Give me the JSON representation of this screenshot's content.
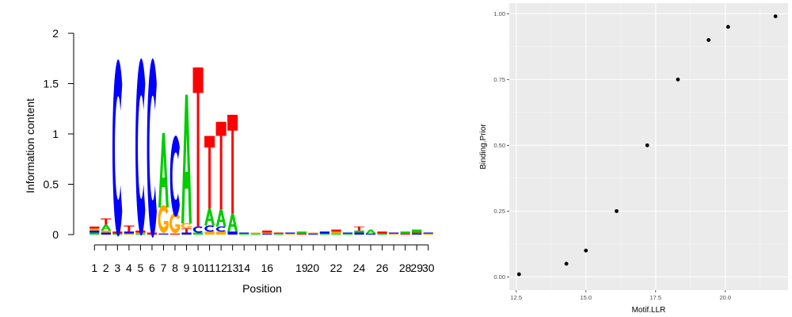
{
  "chart_data": [
    {
      "type": "sequence-logo",
      "xlabel": "Position",
      "ylabel": "Information content",
      "ylim": [
        0,
        2
      ],
      "y_ticks": [
        "0",
        "0.5",
        "1",
        "1.5",
        "2"
      ],
      "x_ticks": [
        "1",
        "2",
        "3",
        "4",
        "5",
        "6",
        "7",
        "8",
        "9",
        "10",
        "11",
        "12",
        "13",
        "14",
        "16",
        "19",
        "20",
        "22",
        "24",
        "26",
        "28",
        "29",
        "30"
      ],
      "colors": {
        "A": "#00cc00",
        "C": "#0000ff",
        "G": "#ffa500",
        "T": "#ff0000"
      },
      "columns": [
        {
          "position": 1,
          "letters": [
            [
              "A",
              0.02
            ],
            [
              "C",
              0.02
            ],
            [
              "G",
              0.02
            ],
            [
              "T",
              0.02
            ]
          ]
        },
        {
          "position": 2,
          "letters": [
            [
              "C",
              0.02
            ],
            [
              "G",
              0.02
            ],
            [
              "A",
              0.06
            ],
            [
              "T",
              0.06
            ]
          ]
        },
        {
          "position": 3,
          "letters": [
            [
              "A",
              0.01
            ],
            [
              "T",
              0.02
            ],
            [
              "C",
              1.66
            ]
          ]
        },
        {
          "position": 4,
          "letters": [
            [
              "G",
              0.01
            ],
            [
              "C",
              0.02
            ],
            [
              "T",
              0.06
            ]
          ]
        },
        {
          "position": 5,
          "letters": [
            [
              "A",
              0.01
            ],
            [
              "G",
              0.01
            ],
            [
              "T",
              0.02
            ],
            [
              "C",
              1.66
            ]
          ]
        },
        {
          "position": 6,
          "letters": [
            [
              "T",
              0.02
            ],
            [
              "C",
              1.68
            ]
          ]
        },
        {
          "position": 7,
          "letters": [
            [
              "C",
              0.01
            ],
            [
              "G",
              0.26
            ],
            [
              "A",
              0.74
            ]
          ]
        },
        {
          "position": 8,
          "letters": [
            [
              "T",
              0.01
            ],
            [
              "G",
              0.19
            ],
            [
              "C",
              0.76
            ]
          ]
        },
        {
          "position": 9,
          "letters": [
            [
              "C",
              0.02
            ],
            [
              "T",
              0.04
            ],
            [
              "G",
              0.05
            ],
            [
              "A",
              1.28
            ]
          ]
        },
        {
          "position": 10,
          "letters": [
            [
              "A",
              0.02
            ],
            [
              "C",
              0.06
            ],
            [
              "T",
              1.58
            ]
          ]
        },
        {
          "position": 11,
          "letters": [
            [
              "G",
              0.03
            ],
            [
              "C",
              0.06
            ],
            [
              "A",
              0.17
            ],
            [
              "T",
              0.72
            ]
          ]
        },
        {
          "position": 12,
          "letters": [
            [
              "G",
              0.03
            ],
            [
              "C",
              0.05
            ],
            [
              "A",
              0.17
            ],
            [
              "T",
              0.87
            ]
          ]
        },
        {
          "position": 13,
          "letters": [
            [
              "C",
              0.03
            ],
            [
              "A",
              0.18
            ],
            [
              "T",
              0.98
            ]
          ]
        },
        {
          "position": 14,
          "letters": [
            [
              "A",
              0.01
            ],
            [
              "C",
              0.01
            ]
          ]
        },
        {
          "position": 15,
          "letters": [
            [
              "A",
              0.01
            ],
            [
              "G",
              0.01
            ]
          ]
        },
        {
          "position": 16,
          "letters": [
            [
              "C",
              0.01
            ],
            [
              "G",
              0.01
            ],
            [
              "T",
              0.02
            ]
          ]
        },
        {
          "position": 17,
          "letters": [
            [
              "A",
              0.01
            ],
            [
              "T",
              0.01
            ]
          ]
        },
        {
          "position": 18,
          "letters": [
            [
              "G",
              0.01
            ],
            [
              "C",
              0.01
            ]
          ]
        },
        {
          "position": 19,
          "letters": [
            [
              "T",
              0.01
            ],
            [
              "A",
              0.02
            ]
          ]
        },
        {
          "position": 20,
          "letters": [
            [
              "C",
              0.01
            ],
            [
              "G",
              0.01
            ]
          ]
        },
        {
          "position": 21,
          "letters": [
            [
              "A",
              0.01
            ],
            [
              "C",
              0.02
            ]
          ]
        },
        {
          "position": 22,
          "letters": [
            [
              "A",
              0.01
            ],
            [
              "G",
              0.02
            ],
            [
              "T",
              0.02
            ]
          ]
        },
        {
          "position": 23,
          "letters": [
            [
              "A",
              0.01
            ],
            [
              "C",
              0.01
            ]
          ]
        },
        {
          "position": 24,
          "letters": [
            [
              "C",
              0.02
            ],
            [
              "A",
              0.02
            ],
            [
              "T",
              0.04
            ]
          ]
        },
        {
          "position": 25,
          "letters": [
            [
              "C",
              0.01
            ],
            [
              "A",
              0.04
            ]
          ]
        },
        {
          "position": 26,
          "letters": [
            [
              "A",
              0.01
            ],
            [
              "T",
              0.02
            ]
          ]
        },
        {
          "position": 27,
          "letters": [
            [
              "G",
              0.01
            ],
            [
              "C",
              0.01
            ]
          ]
        },
        {
          "position": 28,
          "letters": [
            [
              "T",
              0.01
            ],
            [
              "A",
              0.02
            ]
          ]
        },
        {
          "position": 29,
          "letters": [
            [
              "C",
              0.01
            ],
            [
              "T",
              0.01
            ],
            [
              "A",
              0.03
            ]
          ]
        },
        {
          "position": 30,
          "letters": [
            [
              "G",
              0.01
            ],
            [
              "C",
              0.01
            ]
          ]
        }
      ]
    },
    {
      "type": "scatter",
      "xlabel": "Motif.LLR",
      "ylabel": "Binding.Prior",
      "xlim": [
        12.25,
        22.25
      ],
      "ylim": [
        -0.05,
        1.04
      ],
      "x_ticks": [
        "12.5",
        "15.0",
        "17.5",
        "20.0"
      ],
      "y_ticks": [
        "0.00",
        "0.25",
        "0.50",
        "0.75",
        "1.00"
      ],
      "grid": true,
      "background": "#ebebeb",
      "points": [
        {
          "x": 12.6,
          "y": 0.01
        },
        {
          "x": 14.3,
          "y": 0.05
        },
        {
          "x": 15.0,
          "y": 0.1
        },
        {
          "x": 16.1,
          "y": 0.25
        },
        {
          "x": 17.2,
          "y": 0.5
        },
        {
          "x": 18.3,
          "y": 0.75
        },
        {
          "x": 19.4,
          "y": 0.9
        },
        {
          "x": 20.1,
          "y": 0.95
        },
        {
          "x": 21.8,
          "y": 0.99
        }
      ]
    }
  ]
}
